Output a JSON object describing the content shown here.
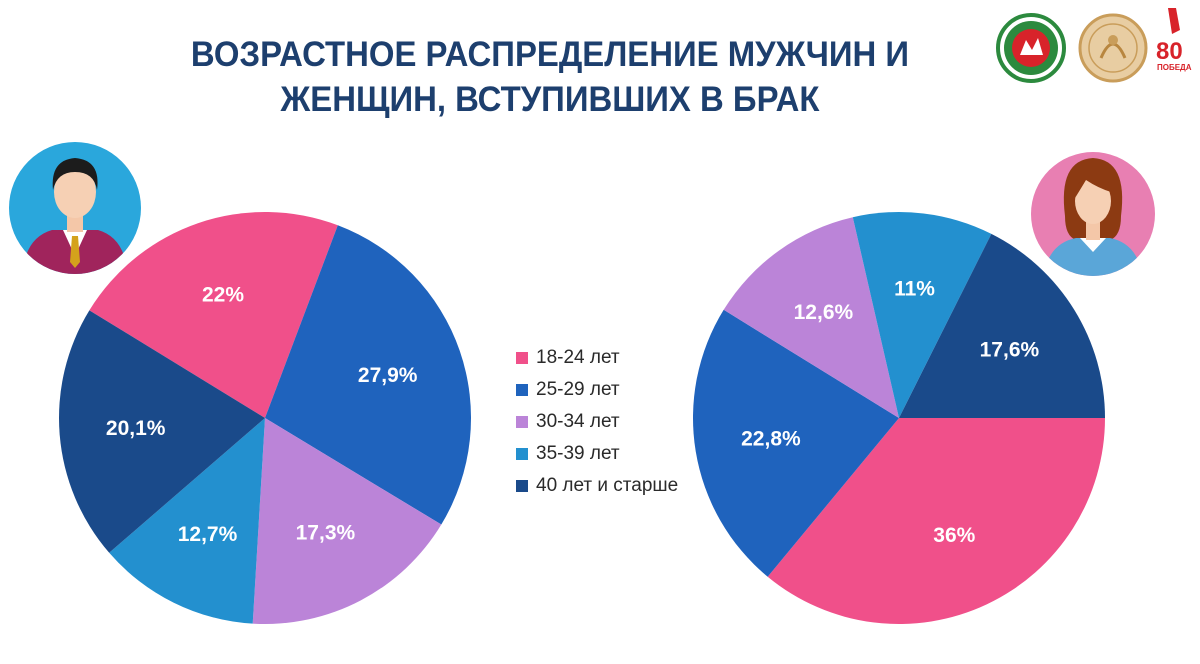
{
  "title": {
    "line1": "ВОЗРАСТНОЕ РАСПРЕДЕЛЕНИЕ МУЖЧИН И",
    "line2": "ЖЕНЩИН, ВСТУПИВШИХ В БРАК"
  },
  "logos": {
    "badge_text": "80",
    "badge_subtext": "ПОБЕДА"
  },
  "chart_data": [
    {
      "type": "pie",
      "categories": [
        "18-24 лет",
        "25-29 лет",
        "30-34 лет",
        "35-39 лет",
        "40 лет и старше"
      ],
      "values": [
        22,
        27.9,
        17.3,
        12.7,
        20.1
      ],
      "value_labels": [
        "22%",
        "27,9%",
        "17,3%",
        "12,7%",
        "20,1%"
      ],
      "colors": [
        "#f0508a",
        "#1f63bd",
        "#bb84d8",
        "#2390cf",
        "#1a4a8a"
      ],
      "legend": "center",
      "icon": "man-avatar-icon"
    },
    {
      "type": "pie",
      "categories": [
        "18-24 лет",
        "25-29 лет",
        "30-34 лет",
        "35-39 лет",
        "40 лет и старше"
      ],
      "values": [
        36,
        22.8,
        12.6,
        11,
        17.6
      ],
      "value_labels": [
        "36%",
        "22,8%",
        "12,6%",
        "11%",
        "17,6%"
      ],
      "colors": [
        "#f0508a",
        "#1f63bd",
        "#bb84d8",
        "#2390cf",
        "#1a4a8a"
      ],
      "legend": "center",
      "icon": "woman-avatar-icon"
    }
  ]
}
